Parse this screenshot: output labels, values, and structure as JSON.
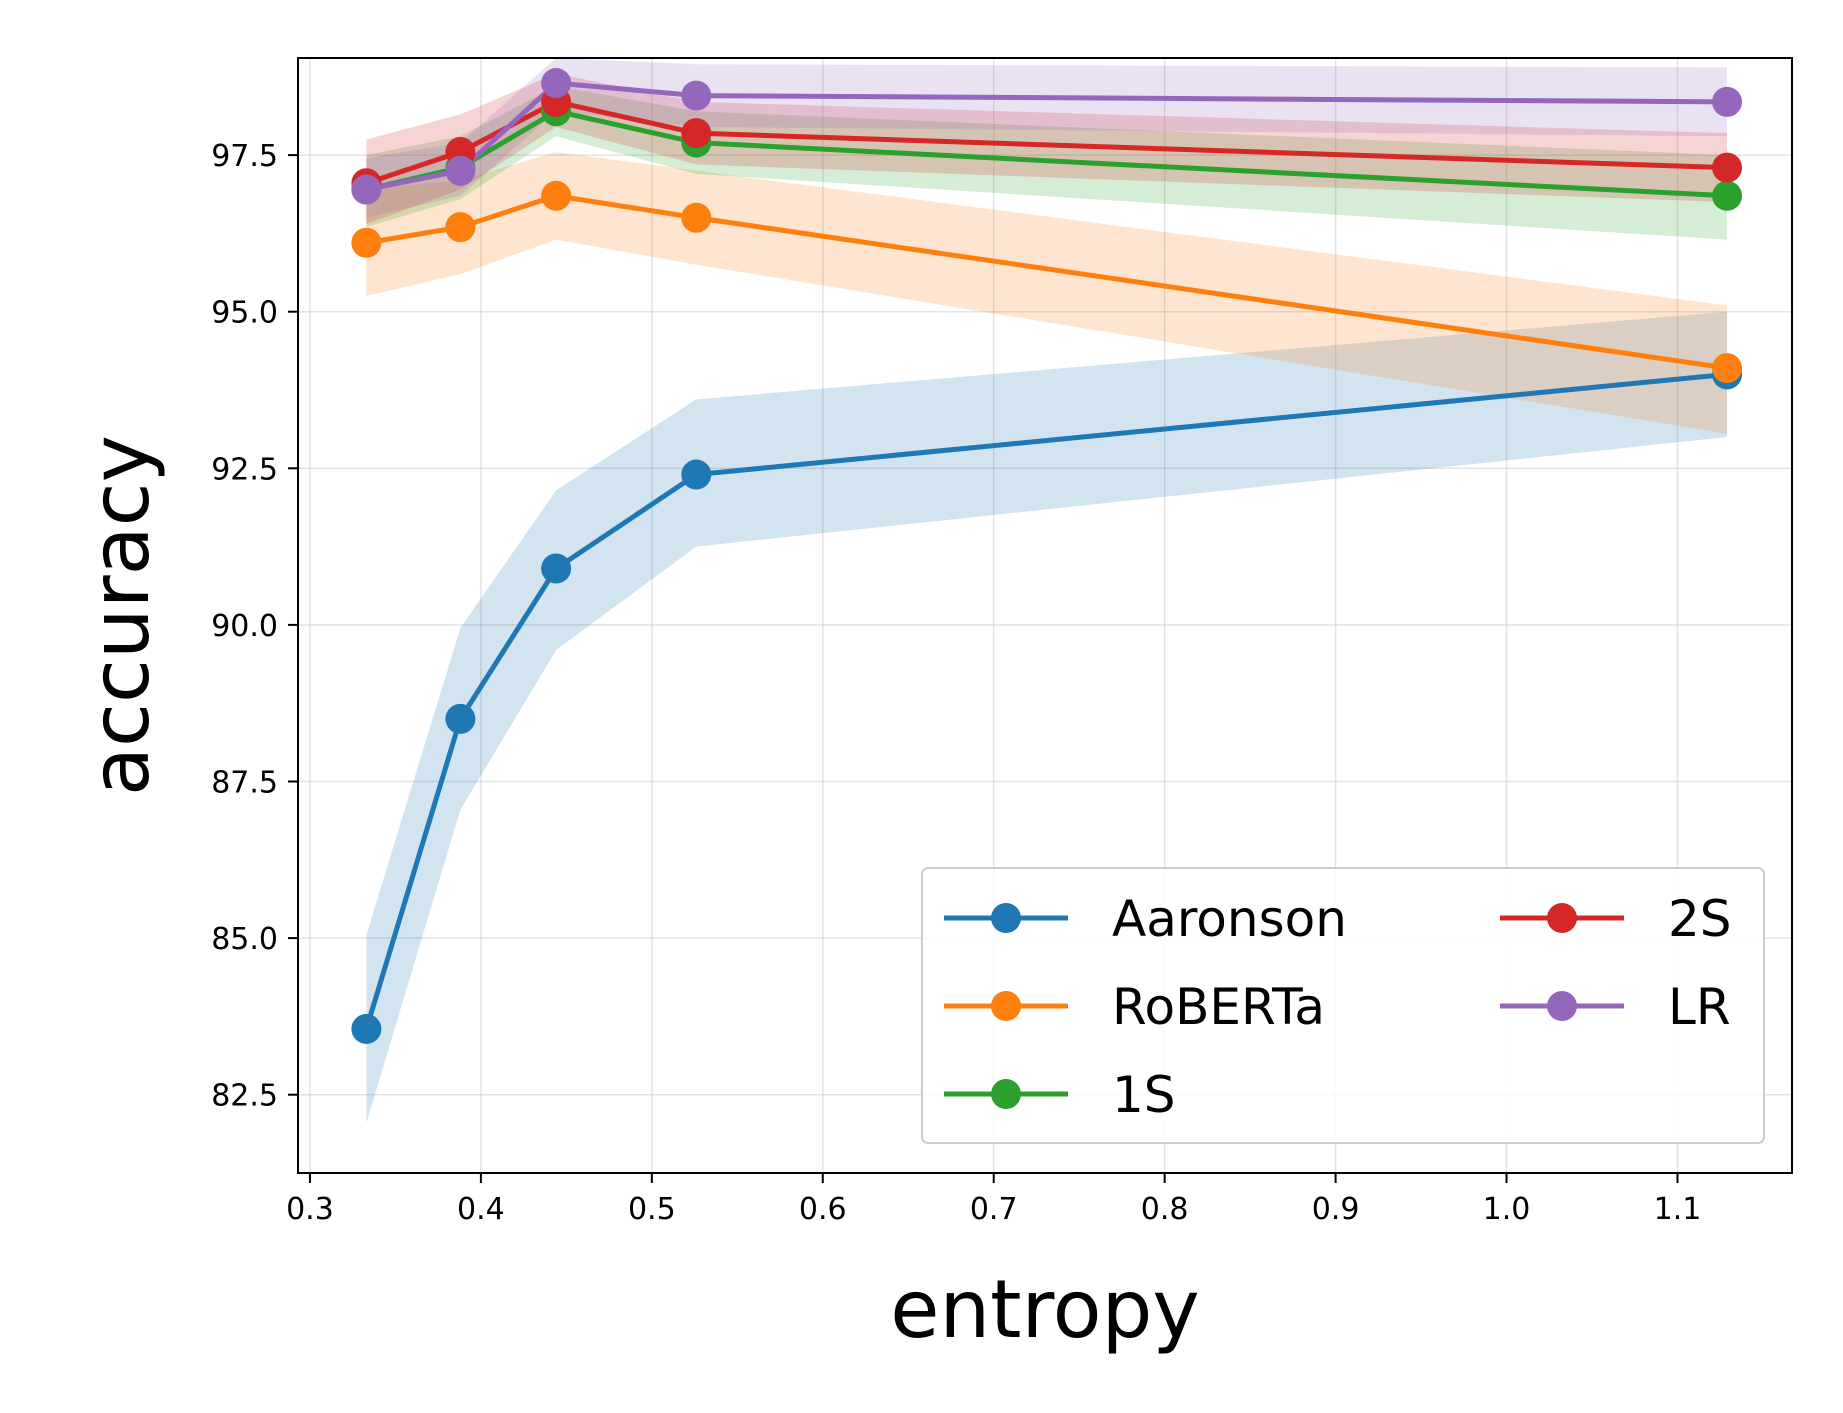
{
  "chart_data": {
    "type": "line",
    "title": "",
    "xlabel": "entropy",
    "ylabel": "accuracy",
    "xlim": [
      0.293,
      1.167
    ],
    "ylim": [
      81.25,
      99.05
    ],
    "xticks": [
      0.3,
      0.4,
      0.5,
      0.6,
      0.7,
      0.8,
      0.9,
      1.0,
      1.1
    ],
    "xtick_labels": [
      "0.3",
      "0.4",
      "0.5",
      "0.6",
      "0.7",
      "0.8",
      "0.9",
      "1.0",
      "1.1"
    ],
    "yticks": [
      82.5,
      85.0,
      87.5,
      90.0,
      92.5,
      95.0,
      97.5
    ],
    "ytick_labels": [
      "82.5",
      "85.0",
      "87.5",
      "90.0",
      "92.5",
      "95.0",
      "97.5"
    ],
    "grid": true,
    "legend": {
      "placement": "lower-right",
      "columns": 2
    },
    "x": [
      0.333,
      0.388,
      0.444,
      0.526,
      1.129
    ],
    "series": [
      {
        "name": "Aaronson",
        "color": "#1f77b4",
        "values": [
          83.55,
          88.5,
          90.9,
          92.4,
          94.0
        ],
        "lower": [
          82.05,
          87.05,
          89.6,
          91.25,
          93.0
        ],
        "upper": [
          85.05,
          89.95,
          92.15,
          93.6,
          95.0
        ]
      },
      {
        "name": "RoBERTa",
        "color": "#ff7f0e",
        "values": [
          96.1,
          96.35,
          96.85,
          96.5,
          94.1
        ],
        "lower": [
          95.25,
          95.6,
          96.15,
          95.75,
          93.05
        ],
        "upper": [
          96.95,
          97.1,
          97.55,
          97.25,
          95.1
        ]
      },
      {
        "name": "1S",
        "color": "#2ca02c",
        "values": [
          96.95,
          97.3,
          98.2,
          97.7,
          96.85
        ],
        "lower": [
          96.35,
          96.8,
          97.8,
          97.2,
          96.15
        ],
        "upper": [
          97.5,
          97.8,
          98.6,
          98.2,
          97.5
        ]
      },
      {
        "name": "2S",
        "color": "#d62728",
        "values": [
          97.05,
          97.55,
          98.35,
          97.85,
          97.3
        ],
        "lower": [
          96.4,
          96.95,
          97.95,
          97.35,
          96.75
        ],
        "upper": [
          97.75,
          98.15,
          98.8,
          98.35,
          97.85
        ]
      },
      {
        "name": "LR",
        "color": "#9467bd",
        "values": [
          96.95,
          97.25,
          98.65,
          98.45,
          98.35
        ],
        "lower": [
          96.5,
          96.85,
          98.2,
          97.95,
          97.8
        ],
        "upper": [
          97.45,
          97.7,
          99.05,
          98.95,
          98.9
        ]
      }
    ]
  }
}
